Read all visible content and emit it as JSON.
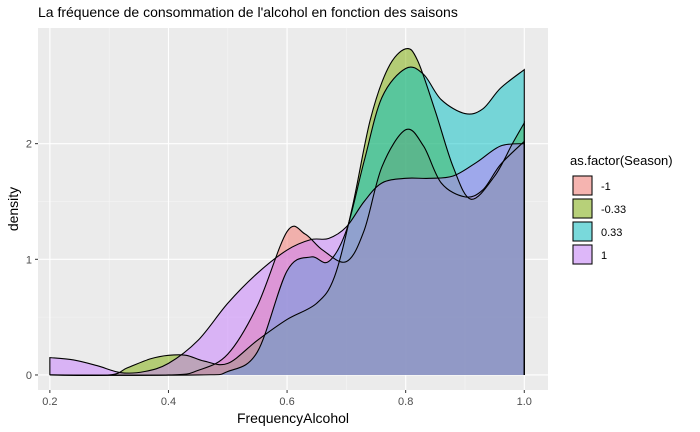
{
  "chart_data": {
    "type": "area",
    "title": "La fréquence de consommation de l'alcohol en fonction des saisons",
    "xlabel": "FrequencyAlcohol",
    "ylabel": "density",
    "xlim": [
      0.18,
      1.04
    ],
    "ylim": [
      -0.13,
      3.0
    ],
    "x_ticks": [
      {
        "value": 0.2,
        "label": "0.2"
      },
      {
        "value": 0.4,
        "label": "0.4"
      },
      {
        "value": 0.6,
        "label": "0.6"
      },
      {
        "value": 0.8,
        "label": "0.8"
      },
      {
        "value": 1.0,
        "label": "1.0"
      }
    ],
    "y_ticks": [
      {
        "value": 0,
        "label": "0"
      },
      {
        "value": 1,
        "label": "1"
      },
      {
        "value": 2,
        "label": "2"
      }
    ],
    "grid": true,
    "legend": {
      "title": "as.factor(Season)",
      "position": "right",
      "entries": [
        "-1",
        "-0.33",
        "0.33",
        "1"
      ]
    },
    "series": [
      {
        "name": "-1",
        "color": "#F8766D",
        "x": [
          0.2,
          0.4,
          0.45,
          0.5,
          0.55,
          0.6,
          0.63,
          0.66,
          0.7,
          0.73,
          0.76,
          0.8,
          0.83,
          0.86,
          0.9,
          0.93,
          0.96,
          1.0
        ],
        "y": [
          0.0,
          0.0,
          0.04,
          0.18,
          0.6,
          1.24,
          1.22,
          1.08,
          0.98,
          1.25,
          1.8,
          2.12,
          1.98,
          1.66,
          1.54,
          1.6,
          1.82,
          2.02
        ]
      },
      {
        "name": "-0.33",
        "color": "#7CAE00",
        "x": [
          0.2,
          0.3,
          0.33,
          0.37,
          0.4,
          0.43,
          0.46,
          0.5,
          0.55,
          0.6,
          0.65,
          0.68,
          0.71,
          0.74,
          0.77,
          0.8,
          0.82,
          0.85,
          0.88,
          0.91,
          0.95,
          0.98,
          1.0
        ],
        "y": [
          0.0,
          0.0,
          0.06,
          0.14,
          0.17,
          0.17,
          0.12,
          0.1,
          0.3,
          0.48,
          0.62,
          0.85,
          1.45,
          2.2,
          2.65,
          2.82,
          2.72,
          2.28,
          1.8,
          1.52,
          1.72,
          2.0,
          2.18
        ]
      },
      {
        "name": "0.33",
        "color": "#00BFC4",
        "x": [
          0.2,
          0.45,
          0.5,
          0.55,
          0.6,
          0.64,
          0.67,
          0.7,
          0.73,
          0.76,
          0.8,
          0.83,
          0.86,
          0.9,
          0.93,
          0.96,
          1.0
        ],
        "y": [
          0.0,
          0.0,
          0.03,
          0.2,
          0.9,
          1.02,
          0.98,
          1.25,
          1.85,
          2.4,
          2.65,
          2.6,
          2.38,
          2.26,
          2.3,
          2.48,
          2.64
        ]
      },
      {
        "name": "1",
        "color": "#C77CFF",
        "x": [
          0.2,
          0.24,
          0.28,
          0.32,
          0.36,
          0.4,
          0.45,
          0.5,
          0.55,
          0.6,
          0.64,
          0.67,
          0.7,
          0.73,
          0.76,
          0.8,
          0.84,
          0.88,
          0.92,
          0.96,
          1.0
        ],
        "y": [
          0.15,
          0.13,
          0.08,
          0.02,
          0.03,
          0.1,
          0.3,
          0.62,
          0.88,
          1.08,
          1.17,
          1.18,
          1.28,
          1.5,
          1.66,
          1.7,
          1.7,
          1.72,
          1.84,
          1.98,
          2.0
        ]
      }
    ]
  }
}
